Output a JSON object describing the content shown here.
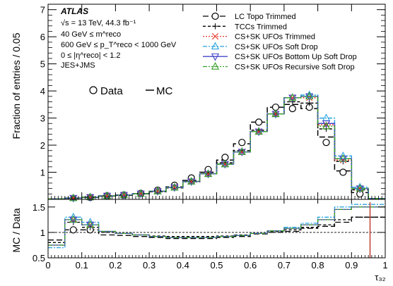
{
  "chart_data": {
    "type": "line",
    "experiment": "ATLAS",
    "annotations": [
      "√s = 13 TeV, 44.3 fb⁻¹",
      "40 GeV ≤ m^reco",
      "600 GeV ≤ p_T^reco < 1000 GeV",
      "0 ≤ |η^reco| < 1.2",
      "JES+JMS"
    ],
    "xlabel": "τ₃₂",
    "ylabel": "Fraction of entries / 0.05",
    "ratio_ylabel": "MC / Data",
    "xlim": [
      0,
      1
    ],
    "ylim": [
      0,
      7.2
    ],
    "ratio_ylim": [
      0.5,
      1.65
    ],
    "x_ticks": [
      "0",
      "0.1",
      "0.2",
      "0.3",
      "0.4",
      "0.5",
      "0.6",
      "0.7",
      "0.8",
      "0.9",
      "1"
    ],
    "y_ticks": [
      "1",
      "2",
      "3",
      "4",
      "5",
      "6",
      "7"
    ],
    "ratio_y_ticks": [
      "0.5",
      "1",
      "1.5"
    ],
    "bin_edges": [
      0,
      0.05,
      0.1,
      0.15,
      0.2,
      0.25,
      0.3,
      0.35,
      0.4,
      0.45,
      0.5,
      0.55,
      0.6,
      0.65,
      0.7,
      0.75,
      0.8,
      0.85,
      0.9,
      0.95,
      1
    ],
    "style_legend": {
      "data": "Data",
      "mc": "MC"
    },
    "series": [
      {
        "name": "LC Topo Trimmed",
        "color": "#000000",
        "marker": "open-circle",
        "dash": "8 4",
        "data": [
          0.02,
          0.04,
          0.07,
          0.13,
          0.16,
          0.22,
          0.34,
          0.52,
          0.79,
          1.1,
          1.55,
          2.1,
          2.85,
          3.4,
          3.35,
          3.4,
          2.1,
          1.0,
          0.2,
          0.02
        ],
        "mc": [
          0.02,
          0.04,
          0.07,
          0.12,
          0.15,
          0.2,
          0.3,
          0.46,
          0.7,
          1.0,
          1.45,
          2.05,
          2.85,
          3.4,
          3.5,
          3.35,
          2.3,
          1.05,
          0.25,
          0.02
        ],
        "ratio": [
          0.85,
          1.05,
          1.05,
          0.95,
          0.94,
          0.92,
          0.9,
          0.88,
          0.88,
          0.88,
          0.9,
          0.92,
          0.97,
          1.0,
          1.02,
          1.08,
          1.12,
          1.2,
          1.3,
          1.3
        ]
      },
      {
        "name": "TCCs Trimmed",
        "color": "#000000",
        "marker": "plus",
        "dash": "4 3",
        "mc": [
          0.02,
          0.05,
          0.07,
          0.12,
          0.15,
          0.2,
          0.28,
          0.42,
          0.65,
          0.95,
          1.35,
          1.8,
          2.55,
          3.15,
          3.6,
          3.55,
          2.6,
          1.4,
          0.35,
          0.03
        ],
        "ratio": [
          0.8,
          1.2,
          1.1,
          1.0,
          0.98,
          0.95,
          0.93,
          0.92,
          0.92,
          0.92,
          0.93,
          0.95,
          0.98,
          1.02,
          1.05,
          1.1,
          1.15,
          1.25,
          1.3,
          1.3
        ]
      },
      {
        "name": "CS+SK UFOs Trimmed",
        "color": "#e8372b",
        "marker": "cross",
        "dash": "2 2",
        "mc": [
          0.02,
          0.05,
          0.08,
          0.13,
          0.16,
          0.21,
          0.3,
          0.44,
          0.66,
          0.94,
          1.3,
          1.75,
          2.5,
          3.15,
          3.75,
          3.75,
          2.75,
          1.45,
          0.4,
          0.03
        ],
        "ratio": [
          0.75,
          1.25,
          1.15,
          1.02,
          0.98,
          0.95,
          0.92,
          0.9,
          0.9,
          0.9,
          0.92,
          0.94,
          0.98,
          1.03,
          1.08,
          1.15,
          1.25,
          1.45,
          1.5,
          1.5
        ]
      },
      {
        "name": "CS+SK UFOs Soft Drop",
        "color": "#2aa4e0",
        "marker": "open-triangle-up",
        "dash": "6 2 2 2",
        "mc": [
          0.02,
          0.05,
          0.08,
          0.13,
          0.16,
          0.21,
          0.3,
          0.44,
          0.66,
          0.94,
          1.3,
          1.75,
          2.5,
          3.15,
          3.75,
          3.85,
          3.0,
          1.6,
          0.45,
          0.03
        ],
        "ratio": [
          0.7,
          1.3,
          1.2,
          1.02,
          0.98,
          0.95,
          0.92,
          0.9,
          0.9,
          0.9,
          0.92,
          0.94,
          0.98,
          1.03,
          1.1,
          1.18,
          1.3,
          1.5,
          1.55,
          1.55
        ]
      },
      {
        "name": "CS+SK UFOs Bottom Up Soft Drop",
        "color": "#4444cc",
        "marker": "open-triangle-down",
        "dash": "",
        "mc": [
          0.02,
          0.05,
          0.08,
          0.13,
          0.16,
          0.21,
          0.3,
          0.44,
          0.66,
          0.94,
          1.3,
          1.75,
          2.5,
          3.15,
          3.75,
          3.8,
          2.8,
          1.5,
          0.4,
          0.03
        ],
        "ratio": [
          0.75,
          1.25,
          1.15,
          1.02,
          0.98,
          0.95,
          0.92,
          0.9,
          0.9,
          0.9,
          0.92,
          0.94,
          0.98,
          1.03,
          1.08,
          1.15,
          1.25,
          1.45,
          1.5,
          1.5
        ]
      },
      {
        "name": "CS+SK UFOs Recursive Soft Drop",
        "color": "#3aa02a",
        "marker": "open-triangle-up",
        "dash": "6 2 2 2 2 2",
        "mc": [
          0.02,
          0.05,
          0.08,
          0.13,
          0.16,
          0.21,
          0.3,
          0.44,
          0.66,
          0.94,
          1.3,
          1.75,
          2.5,
          3.15,
          3.75,
          3.8,
          2.7,
          1.5,
          0.4,
          0.03
        ],
        "ratio": [
          0.75,
          1.25,
          1.15,
          1.02,
          0.98,
          0.95,
          0.92,
          0.9,
          0.9,
          0.9,
          0.92,
          0.94,
          0.98,
          1.03,
          1.08,
          1.15,
          1.25,
          1.45,
          1.5,
          1.5
        ]
      }
    ]
  }
}
